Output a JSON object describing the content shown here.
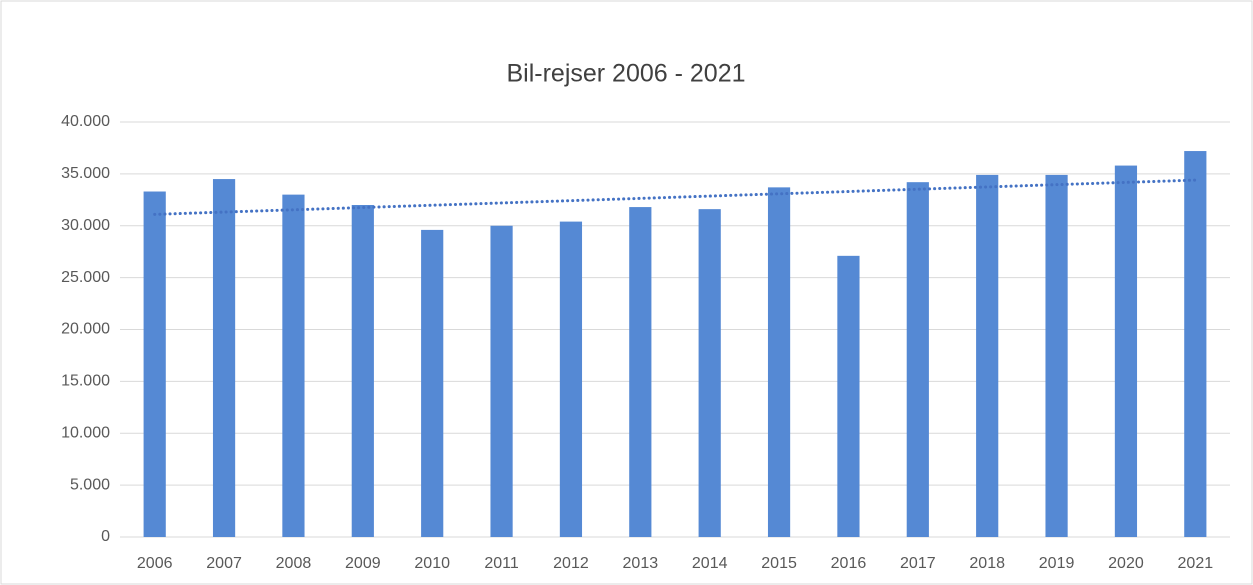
{
  "chart_data": {
    "type": "bar",
    "title": "Bil-rejser 2006 - 2021",
    "categories": [
      "2006",
      "2007",
      "2008",
      "2009",
      "2010",
      "2011",
      "2012",
      "2013",
      "2014",
      "2015",
      "2016",
      "2017",
      "2018",
      "2019",
      "2020",
      "2021"
    ],
    "values": [
      33300,
      34500,
      33000,
      32000,
      29600,
      30000,
      30400,
      31800,
      31600,
      33700,
      27100,
      34200,
      34900,
      34900,
      35800,
      37200
    ],
    "color": "#5589d4",
    "ylim": [
      0,
      40000
    ],
    "yticks": [
      0,
      {
        "value": 5000,
        "label": "5.000"
      },
      {
        "value": 10000,
        "label": "10.000"
      },
      {
        "value": 15000,
        "label": "15.000"
      },
      {
        "value": 20000,
        "label": "20.000"
      },
      {
        "value": 25000,
        "label": "25.000"
      },
      {
        "value": 30000,
        "label": "30.000"
      },
      {
        "value": 35000,
        "label": "35.000"
      },
      {
        "value": 40000,
        "label": "40.000"
      }
    ],
    "grid": true,
    "trendline": "linear",
    "trendline_color": "#4472c4"
  }
}
